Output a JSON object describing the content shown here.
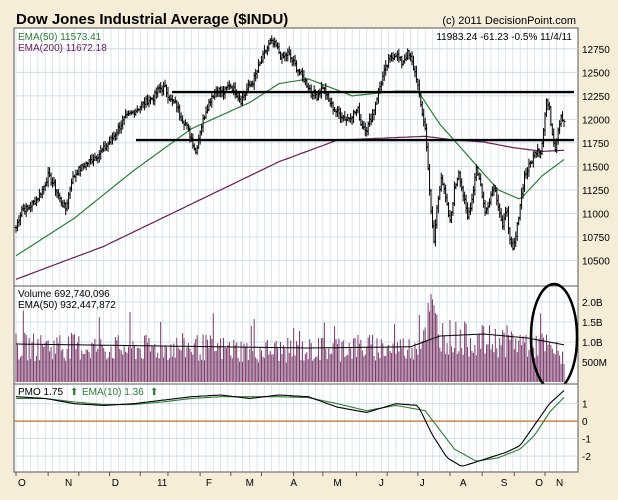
{
  "header": {
    "title": "Dow Jones Industrial Average ($INDU)",
    "copyright": "(c) 2011 DecisionPoint.com",
    "ema50_label": "EMA(50) 11573.41",
    "ema200_label": "EMA(200) 11672.18",
    "quote": "11983.24  -61.23  -0.5%  11/4/11"
  },
  "colors": {
    "background": "#f5edd7",
    "panel": "#ffffff",
    "grid": "#c4d7e6",
    "price": "#000000",
    "ema50": "#2e7d32",
    "ema200": "#6a1b5a",
    "volume_bar": "#7a3a6a",
    "pmo": "#000000",
    "pmo_signal": "#2e7d32",
    "zero_line": "#d2691e"
  },
  "volume_panel": {
    "volume_label": "Volume  692,740,096",
    "ema_label": "EMA(50) 932,447,872"
  },
  "pmo_panel": {
    "pmo_label": "PMO  1.75",
    "pmo_arrow": "⬆",
    "signal_label": "EMA(10)  1.36",
    "signal_arrow": "⬆"
  },
  "chart_data": [
    {
      "type": "ohlc",
      "title": "Dow Jones Industrial Average ($INDU)",
      "ylim": [
        10250,
        12950
      ],
      "y_ticks": [
        10500,
        10750,
        11000,
        11250,
        11500,
        11750,
        12000,
        12250,
        12500,
        12750
      ],
      "y_tick_labels": [
        "10500",
        "10750",
        "11000",
        "11250",
        "11500",
        "11750",
        "12000",
        "12250",
        "12500",
        "12750"
      ],
      "x_tick_labels": [
        "O",
        "N",
        "D",
        "11",
        "F",
        "M",
        "A",
        "M",
        "J",
        "J",
        "A",
        "S",
        "O",
        "N"
      ],
      "close_knots": [
        [
          0,
          10850
        ],
        [
          4,
          11050
        ],
        [
          8,
          11050
        ],
        [
          14,
          11150
        ],
        [
          18,
          11250
        ],
        [
          22,
          11400
        ],
        [
          26,
          11300
        ],
        [
          30,
          11150
        ],
        [
          34,
          11050
        ],
        [
          38,
          11350
        ],
        [
          42,
          11450
        ],
        [
          46,
          11500
        ],
        [
          50,
          11550
        ],
        [
          54,
          11600
        ],
        [
          58,
          11650
        ],
        [
          62,
          11720
        ],
        [
          66,
          11800
        ],
        [
          70,
          11900
        ],
        [
          74,
          12000
        ],
        [
          78,
          12050
        ],
        [
          82,
          12100
        ],
        [
          86,
          12150
        ],
        [
          90,
          12200
        ],
        [
          94,
          12230
        ],
        [
          98,
          12330
        ],
        [
          102,
          12330
        ],
        [
          106,
          12200
        ],
        [
          110,
          12150
        ],
        [
          112,
          12050
        ],
        [
          116,
          11950
        ],
        [
          120,
          11800
        ],
        [
          123,
          11650
        ],
        [
          126,
          11880
        ],
        [
          130,
          12100
        ],
        [
          134,
          12250
        ],
        [
          138,
          12320
        ],
        [
          142,
          12280
        ],
        [
          146,
          12370
        ],
        [
          150,
          12300
        ],
        [
          154,
          12200
        ],
        [
          158,
          12320
        ],
        [
          162,
          12400
        ],
        [
          166,
          12550
        ],
        [
          170,
          12700
        ],
        [
          174,
          12820
        ],
        [
          178,
          12780
        ],
        [
          182,
          12650
        ],
        [
          186,
          12700
        ],
        [
          190,
          12600
        ],
        [
          194,
          12500
        ],
        [
          198,
          12400
        ],
        [
          202,
          12300
        ],
        [
          206,
          12250
        ],
        [
          210,
          12350
        ],
        [
          214,
          12200
        ],
        [
          218,
          12100
        ],
        [
          222,
          12050
        ],
        [
          226,
          12000
        ],
        [
          230,
          12050
        ],
        [
          234,
          12100
        ],
        [
          236,
          11950
        ],
        [
          240,
          11900
        ],
        [
          244,
          12050
        ],
        [
          248,
          12300
        ],
        [
          252,
          12500
        ],
        [
          256,
          12650
        ],
        [
          260,
          12700
        ],
        [
          264,
          12600
        ],
        [
          268,
          12700
        ],
        [
          270,
          12650
        ],
        [
          272,
          12550
        ],
        [
          274,
          12450
        ],
        [
          277,
          12150
        ],
        [
          280,
          11900
        ],
        [
          282,
          11500
        ],
        [
          284,
          11000
        ],
        [
          286,
          10700
        ],
        [
          288,
          11050
        ],
        [
          291,
          11400
        ],
        [
          294,
          11150
        ],
        [
          297,
          10900
        ],
        [
          300,
          11250
        ],
        [
          303,
          11450
        ],
        [
          306,
          11200
        ],
        [
          309,
          10950
        ],
        [
          312,
          11150
        ],
        [
          315,
          11500
        ],
        [
          318,
          11300
        ],
        [
          321,
          11000
        ],
        [
          324,
          11150
        ],
        [
          327,
          11300
        ],
        [
          330,
          11100
        ],
        [
          333,
          10850
        ],
        [
          336,
          11050
        ],
        [
          338,
          10700
        ],
        [
          340,
          10600
        ],
        [
          342,
          10750
        ],
        [
          345,
          11100
        ],
        [
          348,
          11400
        ],
        [
          351,
          11500
        ],
        [
          354,
          11600
        ],
        [
          357,
          11700
        ],
        [
          359,
          11650
        ],
        [
          361,
          11900
        ],
        [
          363,
          12200
        ],
        [
          365,
          12100
        ],
        [
          367,
          11850
        ],
        [
          369,
          11700
        ],
        [
          371,
          11900
        ],
        [
          373,
          12050
        ],
        [
          375,
          11983
        ]
      ],
      "ema50_knots": [
        [
          0,
          10550
        ],
        [
          40,
          10950
        ],
        [
          80,
          11450
        ],
        [
          120,
          11900
        ],
        [
          160,
          12180
        ],
        [
          180,
          12380
        ],
        [
          200,
          12430
        ],
        [
          230,
          12250
        ],
        [
          260,
          12300
        ],
        [
          275,
          12300
        ],
        [
          290,
          11950
        ],
        [
          310,
          11600
        ],
        [
          330,
          11250
        ],
        [
          345,
          11150
        ],
        [
          360,
          11400
        ],
        [
          375,
          11573
        ]
      ],
      "ema200_knots": [
        [
          0,
          10300
        ],
        [
          60,
          10650
        ],
        [
          120,
          11100
        ],
        [
          180,
          11550
        ],
        [
          220,
          11780
        ],
        [
          250,
          11800
        ],
        [
          280,
          11820
        ],
        [
          300,
          11780
        ],
        [
          320,
          11760
        ],
        [
          340,
          11700
        ],
        [
          360,
          11660
        ],
        [
          375,
          11672
        ]
      ],
      "horizontal_lines": [
        12290,
        11780
      ]
    },
    {
      "type": "bar",
      "title": "Volume",
      "ylim": [
        0,
        2.3
      ],
      "y_tick_labels": [
        "2.0B",
        "1.5B",
        "1.0B",
        "500M"
      ],
      "y_ticks": [
        2.0,
        1.5,
        1.0,
        0.5
      ],
      "values_knots": [
        [
          0,
          0.95
        ],
        [
          40,
          0.95
        ],
        [
          80,
          0.9
        ],
        [
          120,
          0.95
        ],
        [
          160,
          0.85
        ],
        [
          200,
          0.85
        ],
        [
          230,
          0.95
        ],
        [
          270,
          0.9
        ],
        [
          278,
          1.3
        ],
        [
          284,
          1.9
        ],
        [
          290,
          1.3
        ],
        [
          300,
          1.2
        ],
        [
          320,
          1.1
        ],
        [
          340,
          1.1
        ],
        [
          360,
          1.0
        ],
        [
          375,
          0.69
        ]
      ],
      "ema_knots": [
        [
          0,
          0.95
        ],
        [
          100,
          0.9
        ],
        [
          200,
          0.85
        ],
        [
          270,
          0.88
        ],
        [
          290,
          1.15
        ],
        [
          320,
          1.2
        ],
        [
          350,
          1.1
        ],
        [
          375,
          0.93
        ]
      ]
    },
    {
      "type": "line",
      "title": "PMO",
      "ylim": [
        -2.8,
        1.9
      ],
      "y_ticks": [
        1,
        0,
        -1,
        -2
      ],
      "y_tick_labels": [
        "1",
        "0",
        "-1",
        "-2"
      ],
      "series": [
        {
          "name": "PMO",
          "knots": [
            [
              0,
              1.4
            ],
            [
              20,
              1.3
            ],
            [
              40,
              1.0
            ],
            [
              60,
              0.9
            ],
            [
              80,
              1.0
            ],
            [
              100,
              1.2
            ],
            [
              120,
              1.4
            ],
            [
              140,
              1.5
            ],
            [
              160,
              1.3
            ],
            [
              180,
              1.5
            ],
            [
              200,
              1.4
            ],
            [
              220,
              0.8
            ],
            [
              240,
              0.5
            ],
            [
              260,
              1.0
            ],
            [
              275,
              0.9
            ],
            [
              285,
              -0.8
            ],
            [
              295,
              -2.1
            ],
            [
              305,
              -2.6
            ],
            [
              320,
              -2.2
            ],
            [
              335,
              -1.8
            ],
            [
              345,
              -1.4
            ],
            [
              355,
              -0.2
            ],
            [
              365,
              1.0
            ],
            [
              375,
              1.75
            ]
          ]
        },
        {
          "name": "EMA(10)",
          "knots": [
            [
              0,
              1.3
            ],
            [
              20,
              1.3
            ],
            [
              40,
              1.1
            ],
            [
              60,
              0.95
            ],
            [
              80,
              0.95
            ],
            [
              100,
              1.1
            ],
            [
              120,
              1.3
            ],
            [
              140,
              1.4
            ],
            [
              160,
              1.4
            ],
            [
              180,
              1.4
            ],
            [
              200,
              1.35
            ],
            [
              220,
              1.0
            ],
            [
              240,
              0.6
            ],
            [
              260,
              0.9
            ],
            [
              280,
              0.6
            ],
            [
              290,
              -0.5
            ],
            [
              300,
              -1.6
            ],
            [
              315,
              -2.3
            ],
            [
              330,
              -2.1
            ],
            [
              345,
              -1.6
            ],
            [
              355,
              -0.8
            ],
            [
              365,
              0.5
            ],
            [
              375,
              1.36
            ]
          ]
        }
      ]
    }
  ]
}
